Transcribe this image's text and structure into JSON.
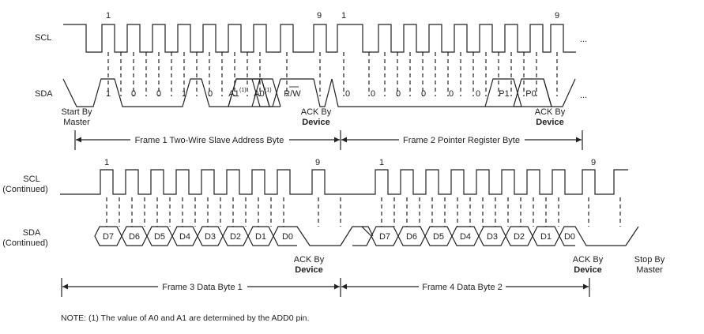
{
  "row1": {
    "scl_label": "SCL",
    "sda_label": "SDA",
    "clock_mark_first": "1",
    "clock_mark_ninth": "9",
    "clock_mark_first_2": "1",
    "clock_mark_ninth_2": "9",
    "continuation": "...",
    "bits": [
      "1",
      "0",
      "0",
      "1",
      "0",
      "A1",
      "A0",
      "R/W",
      "0",
      "0",
      "0",
      "0",
      "0",
      "0",
      "P1",
      "P0"
    ],
    "superscript": "(1)",
    "start_line1": "Start By",
    "start_line2": "Master",
    "ack1_line1": "ACK By",
    "ack1_line2": "Device",
    "ack2_line1": "ACK By",
    "ack2_line2": "Device",
    "frame1": "Frame 1 Two-Wire Slave Address Byte",
    "frame2": "Frame 2 Pointer Register Byte"
  },
  "row2": {
    "scl_label_1": "SCL",
    "scl_label_2": "(Continued)",
    "sda_label_1": "SDA",
    "sda_label_2": "(Continued)",
    "clock_mark_first": "1",
    "clock_mark_ninth": "9",
    "clock_mark_first_2": "1",
    "clock_mark_ninth_2": "9",
    "byte1_bits": [
      "D7",
      "D6",
      "D5",
      "D4",
      "D3",
      "D2",
      "D1",
      "D0"
    ],
    "byte2_bits": [
      "D7",
      "D6",
      "D5",
      "D4",
      "D3",
      "D2",
      "D1",
      "D0"
    ],
    "ack1_line1": "ACK By",
    "ack1_line2": "Device",
    "ack2_line1": "ACK By",
    "ack2_line2": "Device",
    "stop_line1": "Stop By",
    "stop_line2": "Master",
    "frame3": "Frame 3 Data Byte 1",
    "frame4": "Frame 4 Data Byte 2"
  },
  "note": "NOTE: (1) The value of A0 and A1 are determined by the ADD0 pin."
}
